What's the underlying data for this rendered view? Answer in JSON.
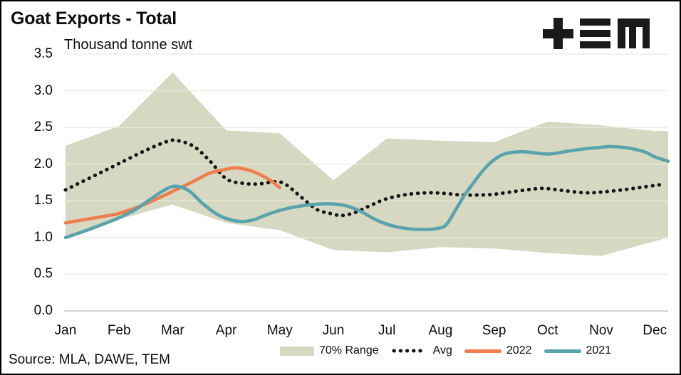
{
  "branding": {
    "logo_icon": "tem-logo"
  },
  "source_note": "Source: MLA, DAWE, TEM",
  "colors": {
    "background": "#ffffff",
    "border": "#000000",
    "grid": "#ebe9dc",
    "zero_line": "#c6c6c3",
    "text": "#0d0d0d",
    "logo": "#1a1a1a"
  },
  "chart_data": {
    "type": "line",
    "title": "Goat Exports - Total",
    "ylabel": "Thousand tonne swt",
    "xlabel": "",
    "ylim": [
      0,
      3.5
    ],
    "y_tick_step": 0.5,
    "y_tick_labels": [
      "0.0",
      "0.5",
      "1.0",
      "1.5",
      "2.0",
      "2.5",
      "3.0",
      "3.5"
    ],
    "x_tick_labels": [
      "Jan",
      "Feb",
      "Mar",
      "Apr",
      "May",
      "Jun",
      "Jul",
      "Aug",
      "Sep",
      "Oct",
      "Nov",
      "Dec"
    ],
    "x_unit": "month_index_0_based",
    "grid": "horizontal",
    "legend_position": "bottom",
    "series": [
      {
        "name": "70% Range",
        "type": "band",
        "color": "#d6d8c2",
        "x": [
          0,
          1,
          2,
          3,
          4,
          5,
          6,
          7,
          8,
          9,
          10,
          11,
          11.25
        ],
        "upper": [
          2.25,
          2.52,
          3.25,
          2.46,
          2.42,
          1.78,
          2.35,
          2.32,
          2.3,
          2.58,
          2.53,
          2.45,
          2.45
        ],
        "lower": [
          1.0,
          1.25,
          1.45,
          1.2,
          1.1,
          0.83,
          0.8,
          0.87,
          0.85,
          0.79,
          0.75,
          0.95,
          1.0
        ]
      },
      {
        "name": "Avg",
        "type": "line",
        "style": "dotted",
        "color": "#141414",
        "x": [
          0,
          0.5,
          1,
          1.5,
          1.9,
          2.1,
          2.4,
          2.7,
          3,
          3.3,
          3.6,
          3.9,
          4.1,
          4.4,
          4.7,
          5,
          5.15,
          5.4,
          5.7,
          6,
          6.4,
          6.8,
          7.1,
          7.4,
          7.7,
          8,
          8.5,
          8.9,
          9.3,
          9.7,
          10,
          10.4,
          10.8,
          11.2
        ],
        "y": [
          1.65,
          1.83,
          2.01,
          2.19,
          2.31,
          2.32,
          2.24,
          2.04,
          1.8,
          1.74,
          1.73,
          1.76,
          1.73,
          1.55,
          1.38,
          1.32,
          1.3,
          1.34,
          1.44,
          1.53,
          1.59,
          1.61,
          1.6,
          1.58,
          1.58,
          1.59,
          1.64,
          1.67,
          1.64,
          1.61,
          1.62,
          1.65,
          1.69,
          1.73
        ]
      },
      {
        "name": "2022",
        "type": "line",
        "style": "solid",
        "color": "#f07d4e",
        "x": [
          0,
          0.4,
          0.8,
          1,
          1.4,
          1.8,
          2,
          2.4,
          2.7,
          3,
          3.2,
          3.5,
          3.8,
          4
        ],
        "y": [
          1.2,
          1.25,
          1.3,
          1.33,
          1.43,
          1.56,
          1.63,
          1.77,
          1.88,
          1.93,
          1.95,
          1.9,
          1.79,
          1.68
        ]
      },
      {
        "name": "2021",
        "type": "line",
        "style": "solid",
        "color": "#58a3ad",
        "x": [
          0,
          0.4,
          0.8,
          1,
          1.3,
          1.6,
          1.85,
          2.05,
          2.3,
          2.55,
          2.8,
          3,
          3.25,
          3.5,
          3.75,
          4,
          4.3,
          4.6,
          4.9,
          5.2,
          5.5,
          5.8,
          6.1,
          6.4,
          6.7,
          6.9,
          7.1,
          7.3,
          7.45,
          7.6,
          7.8,
          8,
          8.2,
          8.5,
          8.8,
          9.05,
          9.4,
          9.7,
          10,
          10.2,
          10.5,
          10.8,
          11,
          11.25
        ],
        "y": [
          1.0,
          1.1,
          1.21,
          1.27,
          1.38,
          1.53,
          1.65,
          1.7,
          1.64,
          1.47,
          1.33,
          1.26,
          1.22,
          1.24,
          1.31,
          1.37,
          1.42,
          1.45,
          1.46,
          1.44,
          1.36,
          1.24,
          1.16,
          1.12,
          1.11,
          1.12,
          1.17,
          1.4,
          1.58,
          1.73,
          1.92,
          2.06,
          2.14,
          2.17,
          2.15,
          2.14,
          2.18,
          2.21,
          2.23,
          2.24,
          2.22,
          2.17,
          2.1,
          2.04
        ]
      }
    ]
  }
}
